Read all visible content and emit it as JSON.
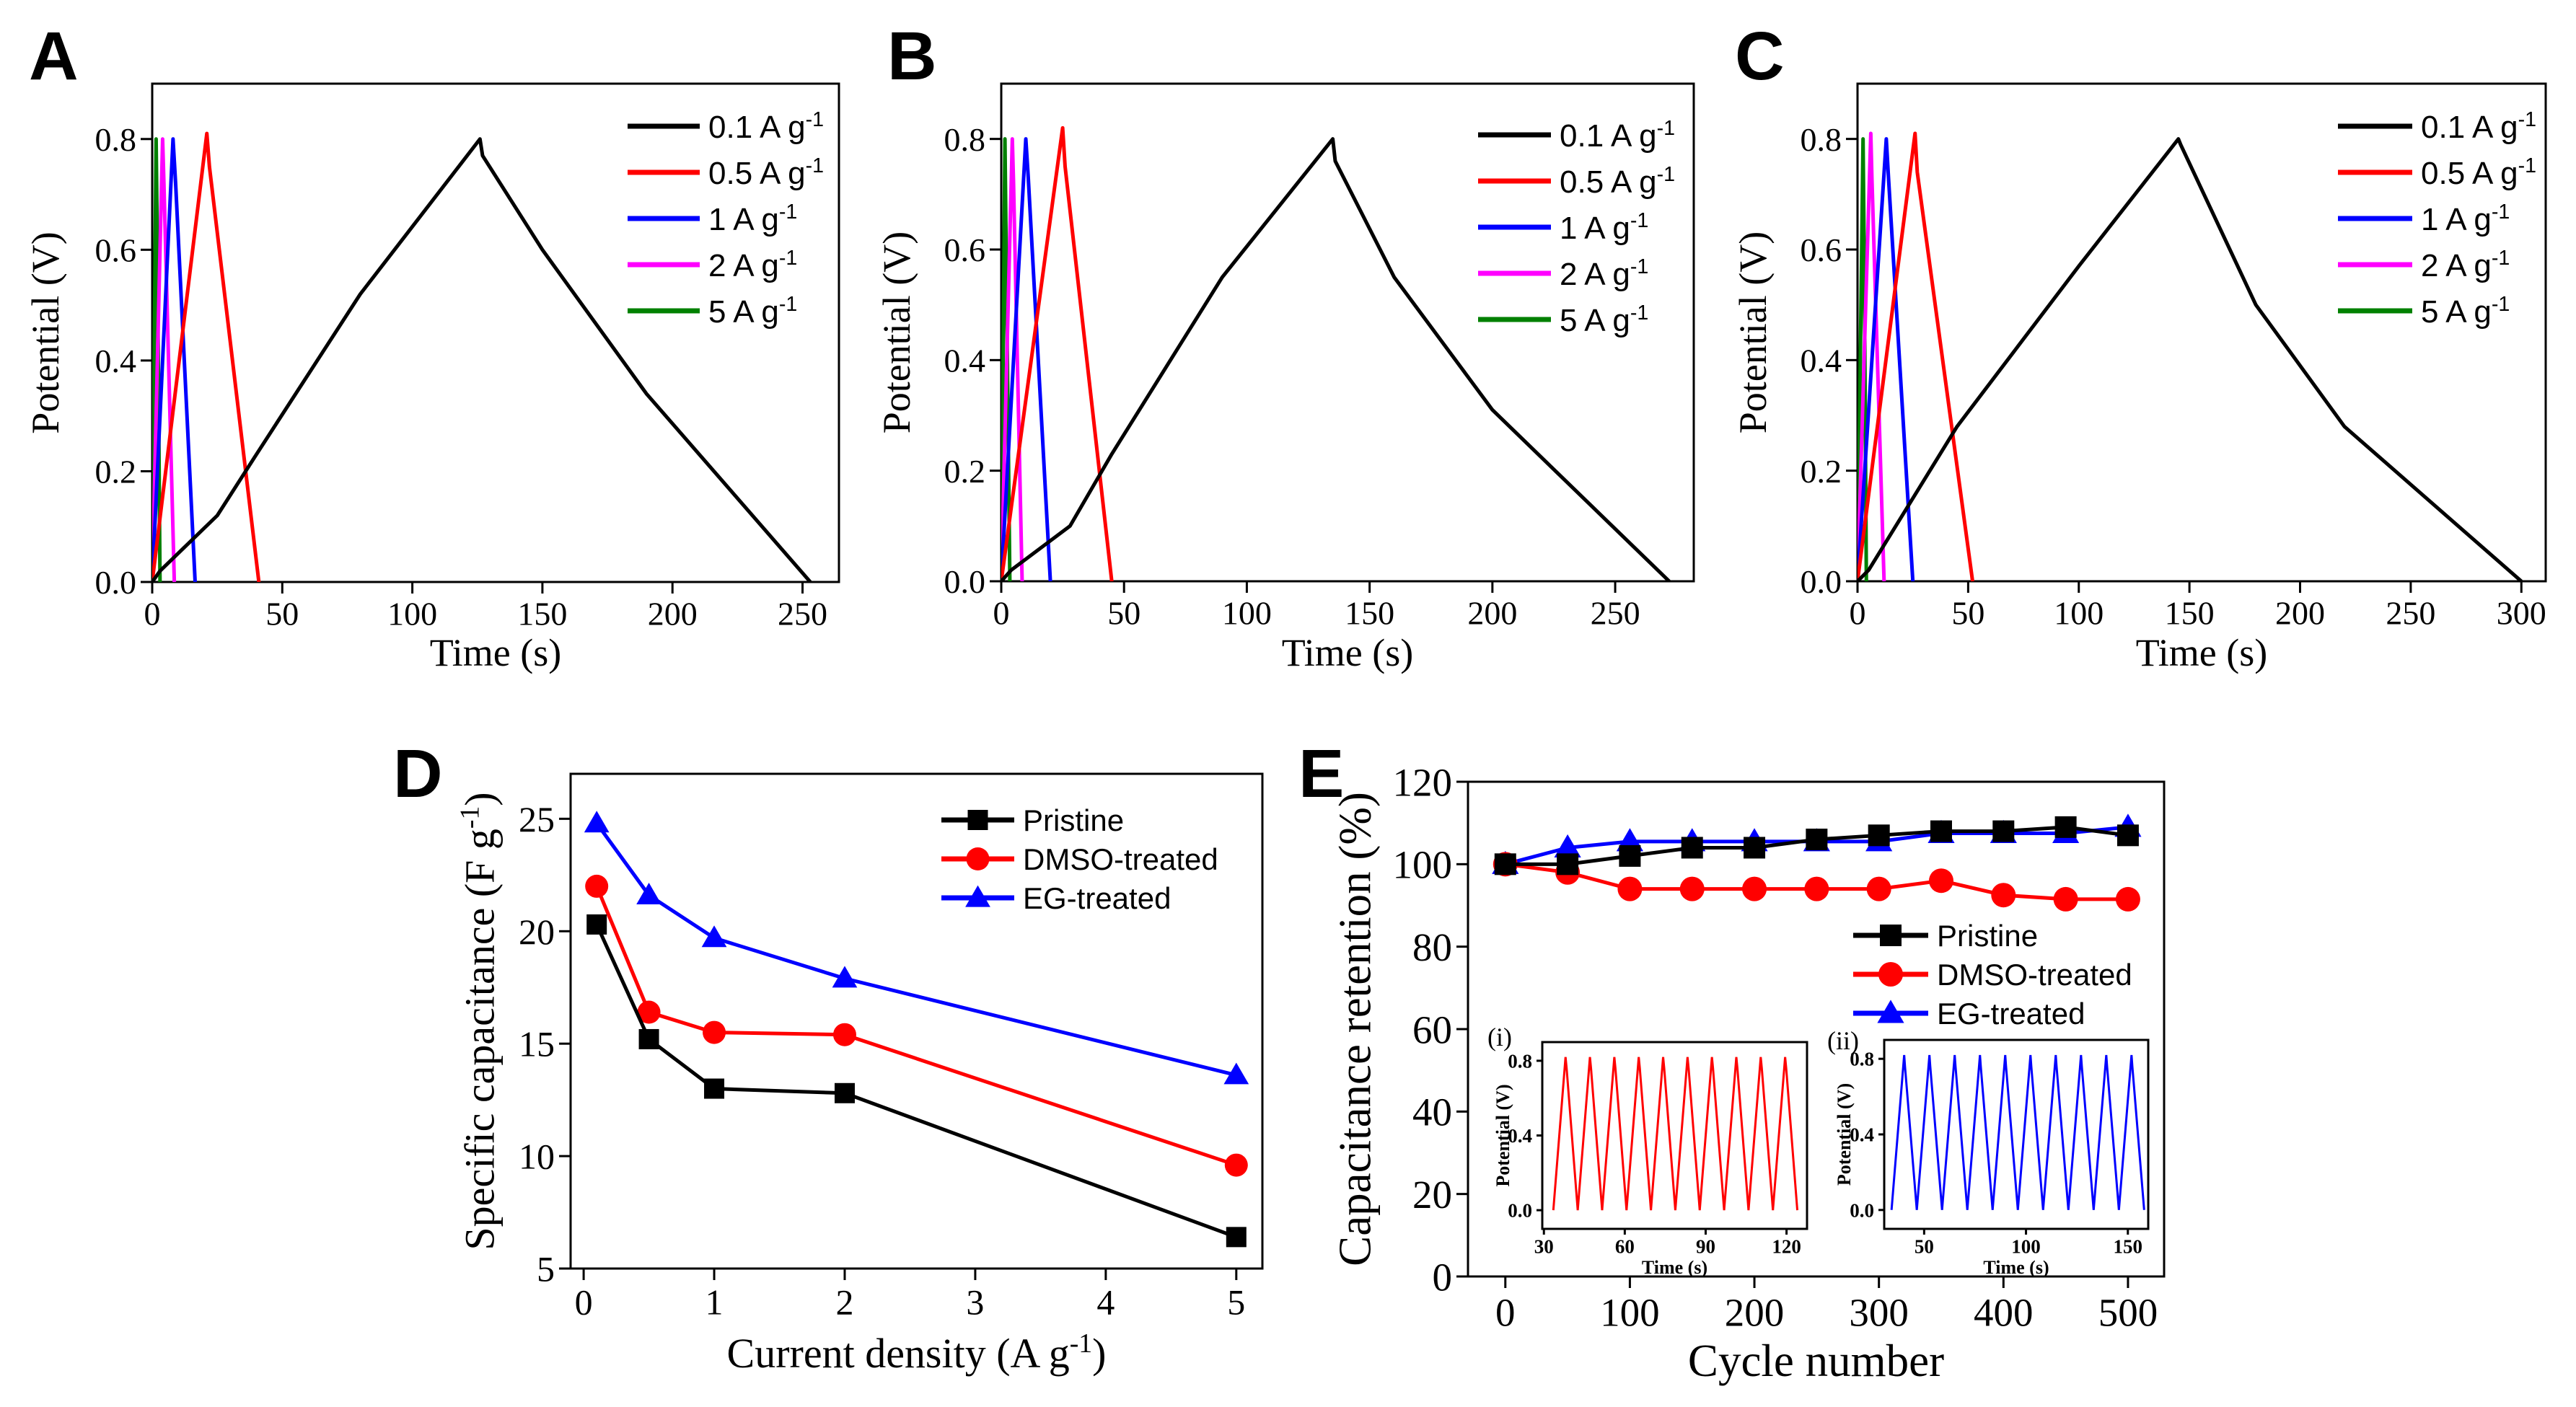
{
  "panel_labels": [
    "A",
    "B",
    "C",
    "D",
    "E"
  ],
  "chart_data": [
    {
      "panel": "A",
      "type": "line",
      "xlabel": "Time (s)",
      "ylabel": "Potential (V)",
      "xlim": [
        0,
        264
      ],
      "ylim": [
        0,
        0.9
      ],
      "xticks": [
        0,
        50,
        100,
        150,
        200,
        250
      ],
      "yticks": [
        0.0,
        0.2,
        0.4,
        0.6,
        0.8
      ],
      "legend": "top-right",
      "series": [
        {
          "name": "0.1 A g-1",
          "color": "#000000",
          "points": [
            [
              0,
              0
            ],
            [
              3,
              0.02
            ],
            [
              25,
              0.12
            ],
            [
              40,
              0.23
            ],
            [
              80,
              0.52
            ],
            [
              126,
              0.8
            ],
            [
              127,
              0.77
            ],
            [
              150,
              0.6
            ],
            [
              190,
              0.34
            ],
            [
              253,
              0
            ]
          ]
        },
        {
          "name": "0.5 A g-1",
          "color": "#ff0000",
          "points": [
            [
              0,
              0
            ],
            [
              21,
              0.81
            ],
            [
              22,
              0.75
            ],
            [
              41,
              0
            ]
          ]
        },
        {
          "name": "1 A g-1",
          "color": "#0000ff",
          "points": [
            [
              0,
              0
            ],
            [
              8,
              0.8
            ],
            [
              9,
              0.72
            ],
            [
              16.5,
              0
            ]
          ]
        },
        {
          "name": "2 A g-1",
          "color": "#ff00ff",
          "points": [
            [
              0,
              0
            ],
            [
              4,
              0.8
            ],
            [
              4.5,
              0.72
            ],
            [
              8.5,
              0
            ]
          ]
        },
        {
          "name": "5 A g-1",
          "color": "#008000",
          "points": [
            [
              0,
              0
            ],
            [
              1.5,
              0.8
            ],
            [
              2,
              0.6
            ],
            [
              3,
              0
            ]
          ]
        }
      ]
    },
    {
      "panel": "B",
      "type": "line",
      "xlabel": "Time (s)",
      "ylabel": "Potential (V)",
      "xlim": [
        0,
        282
      ],
      "ylim": [
        0,
        0.9
      ],
      "xticks": [
        0,
        50,
        100,
        150,
        200,
        250
      ],
      "yticks": [
        0.0,
        0.2,
        0.4,
        0.6,
        0.8
      ],
      "legend": "top-right",
      "series": [
        {
          "name": "0.1 A g-1",
          "color": "#000000",
          "points": [
            [
              0,
              0
            ],
            [
              4,
              0.02
            ],
            [
              28,
              0.1
            ],
            [
              45,
              0.23
            ],
            [
              90,
              0.55
            ],
            [
              135,
              0.8
            ],
            [
              136,
              0.76
            ],
            [
              160,
              0.55
            ],
            [
              200,
              0.31
            ],
            [
              272,
              0
            ]
          ]
        },
        {
          "name": "0.5 A g-1",
          "color": "#ff0000",
          "points": [
            [
              0,
              0
            ],
            [
              25,
              0.82
            ],
            [
              26,
              0.75
            ],
            [
              45,
              0
            ]
          ]
        },
        {
          "name": "1 A g-1",
          "color": "#0000ff",
          "points": [
            [
              0,
              0
            ],
            [
              10,
              0.8
            ],
            [
              11,
              0.73
            ],
            [
              20,
              0
            ]
          ]
        },
        {
          "name": "2 A g-1",
          "color": "#ff00ff",
          "points": [
            [
              0,
              0
            ],
            [
              4.5,
              0.8
            ],
            [
              5,
              0.72
            ],
            [
              8.5,
              0
            ]
          ]
        },
        {
          "name": "5 A g-1",
          "color": "#008000",
          "points": [
            [
              0,
              0
            ],
            [
              1.5,
              0.8
            ],
            [
              2,
              0.6
            ],
            [
              3.5,
              0
            ]
          ]
        }
      ]
    },
    {
      "panel": "C",
      "type": "line",
      "xlabel": "Time (s)",
      "ylabel": "Potential (V)",
      "xlim": [
        0,
        311
      ],
      "ylim": [
        0,
        0.9
      ],
      "xticks": [
        0,
        50,
        100,
        150,
        200,
        250,
        300
      ],
      "yticks": [
        0.0,
        0.2,
        0.4,
        0.6,
        0.8
      ],
      "legend": "top-right",
      "series": [
        {
          "name": "0.1 A g-1",
          "color": "#000000",
          "points": [
            [
              0,
              0
            ],
            [
              5,
              0.02
            ],
            [
              45,
              0.28
            ],
            [
              100,
              0.57
            ],
            [
              145,
              0.8
            ],
            [
              146,
              0.79
            ],
            [
              180,
              0.5
            ],
            [
              220,
              0.28
            ],
            [
              300,
              0
            ]
          ]
        },
        {
          "name": "0.5 A g-1",
          "color": "#ff0000",
          "points": [
            [
              0,
              0
            ],
            [
              26,
              0.81
            ],
            [
              27,
              0.74
            ],
            [
              52,
              0
            ]
          ]
        },
        {
          "name": "1 A g-1",
          "color": "#0000ff",
          "points": [
            [
              0,
              0
            ],
            [
              13,
              0.8
            ],
            [
              14,
              0.73
            ],
            [
              25,
              0
            ]
          ]
        },
        {
          "name": "2 A g-1",
          "color": "#ff00ff",
          "points": [
            [
              0,
              0
            ],
            [
              6,
              0.81
            ],
            [
              6.5,
              0.73
            ],
            [
              12,
              0
            ]
          ]
        },
        {
          "name": "5 A g-1",
          "color": "#008000",
          "points": [
            [
              0,
              0
            ],
            [
              2.5,
              0.8
            ],
            [
              3,
              0.6
            ],
            [
              4,
              0
            ]
          ]
        }
      ]
    },
    {
      "panel": "D",
      "type": "line",
      "xlabel": "Current density (A g-1)",
      "ylabel": "Specific capacitance (F g-1)",
      "xlim": [
        -0.1,
        5.2
      ],
      "ylim": [
        5,
        27
      ],
      "xticks": [
        0,
        1,
        2,
        3,
        4,
        5
      ],
      "yticks": [
        5,
        10,
        15,
        20,
        25
      ],
      "legend": "top-right",
      "x": [
        0.1,
        0.5,
        1,
        2,
        5
      ],
      "series": [
        {
          "name": "Pristine",
          "color": "#000000",
          "marker": "square",
          "values": [
            20.3,
            15.2,
            13.0,
            12.8,
            6.4
          ]
        },
        {
          "name": "DMSO-treated",
          "color": "#ff0000",
          "marker": "circle",
          "values": [
            22.0,
            16.4,
            15.5,
            15.4,
            9.6
          ]
        },
        {
          "name": "EG-treated",
          "color": "#0000ff",
          "marker": "triangle",
          "values": [
            24.8,
            21.6,
            19.7,
            17.9,
            13.6
          ]
        }
      ]
    },
    {
      "panel": "E",
      "type": "line",
      "xlabel": "Cycle number",
      "ylabel": "Capacitance retention (%)",
      "xlim": [
        -30,
        529
      ],
      "ylim": [
        0,
        120
      ],
      "xticks": [
        0,
        100,
        200,
        300,
        400,
        500
      ],
      "yticks": [
        0,
        20,
        40,
        60,
        80,
        100,
        120
      ],
      "legend": "center-right",
      "x": [
        0,
        50,
        100,
        150,
        200,
        250,
        300,
        350,
        400,
        450,
        500
      ],
      "series": [
        {
          "name": "Pristine",
          "color": "#000000",
          "marker": "square",
          "values": [
            100,
            100,
            102,
            104,
            104,
            106,
            107,
            108,
            108,
            109,
            107
          ]
        },
        {
          "name": "DMSO-treated",
          "color": "#ff0000",
          "marker": "circle",
          "values": [
            100,
            98,
            94,
            94,
            94,
            94,
            94,
            96,
            92.5,
            91.5,
            91.5
          ]
        },
        {
          "name": "EG-treated",
          "color": "#0000ff",
          "marker": "triangle",
          "values": [
            100,
            104,
            105.5,
            105.5,
            105.5,
            105.5,
            105.5,
            107.5,
            107.5,
            107.5,
            109
          ]
        }
      ],
      "insets": [
        {
          "label": "(i)",
          "type": "line",
          "xlabel": "Time (s)",
          "ylabel": "Potential (V)",
          "color": "#ff0000",
          "xlim": [
            29.4,
            127.6
          ],
          "ylim": [
            -0.1,
            0.9
          ],
          "xticks": [
            30,
            60,
            90,
            120
          ],
          "yticks": [
            0.0,
            0.4,
            0.8
          ],
          "cycles": 10,
          "time_start": 33.5,
          "time_end": 124,
          "v_min": 0.0,
          "v_max": 0.82
        },
        {
          "label": "(ii)",
          "type": "line",
          "xlabel": "Time (s)",
          "ylabel": "Potential (V)",
          "color": "#0000ff",
          "xlim": [
            30.4,
            160
          ],
          "ylim": [
            -0.1,
            0.9
          ],
          "xticks": [
            50,
            100,
            150
          ],
          "yticks": [
            0.0,
            0.4,
            0.8
          ],
          "cycles": 10,
          "time_start": 34,
          "time_end": 158,
          "v_min": 0.0,
          "v_max": 0.82
        }
      ]
    }
  ]
}
